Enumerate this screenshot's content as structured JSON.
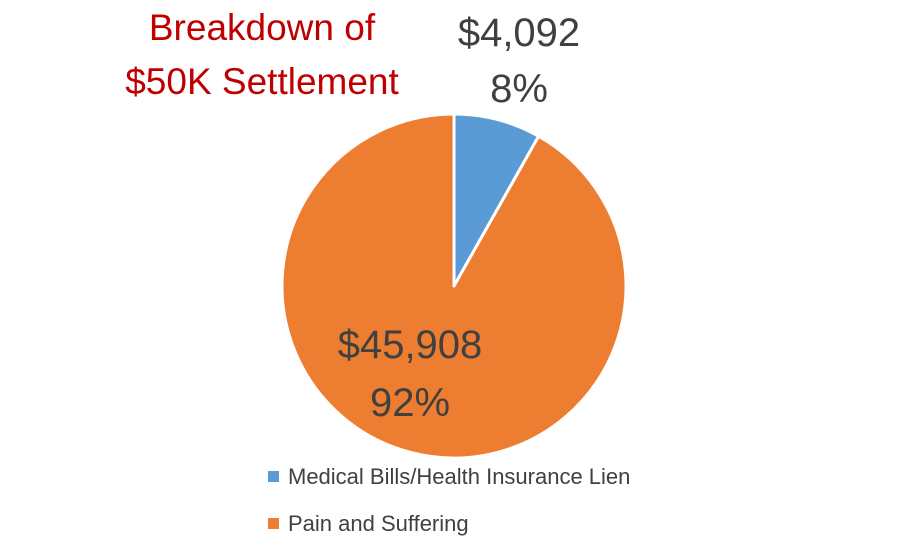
{
  "chart_data": {
    "type": "pie",
    "title_lines": [
      "Breakdown of",
      "$50K Settlement"
    ],
    "title_color": "#c00000",
    "categories": [
      "Medical Bills/Health Insurance Lien",
      "Pain and Suffering"
    ],
    "values": [
      4092,
      45908
    ],
    "value_labels": [
      "$4,092",
      "$45,908"
    ],
    "percent_labels": [
      "8%",
      "92%"
    ],
    "colors": [
      "#5b9bd5",
      "#ed7d31"
    ],
    "legend_position": "bottom",
    "legend": [
      {
        "label": "Medical Bills/Health Insurance Lien",
        "color": "#5b9bd5"
      },
      {
        "label": "Pain and Suffering",
        "color": "#ed7d31"
      }
    ]
  }
}
